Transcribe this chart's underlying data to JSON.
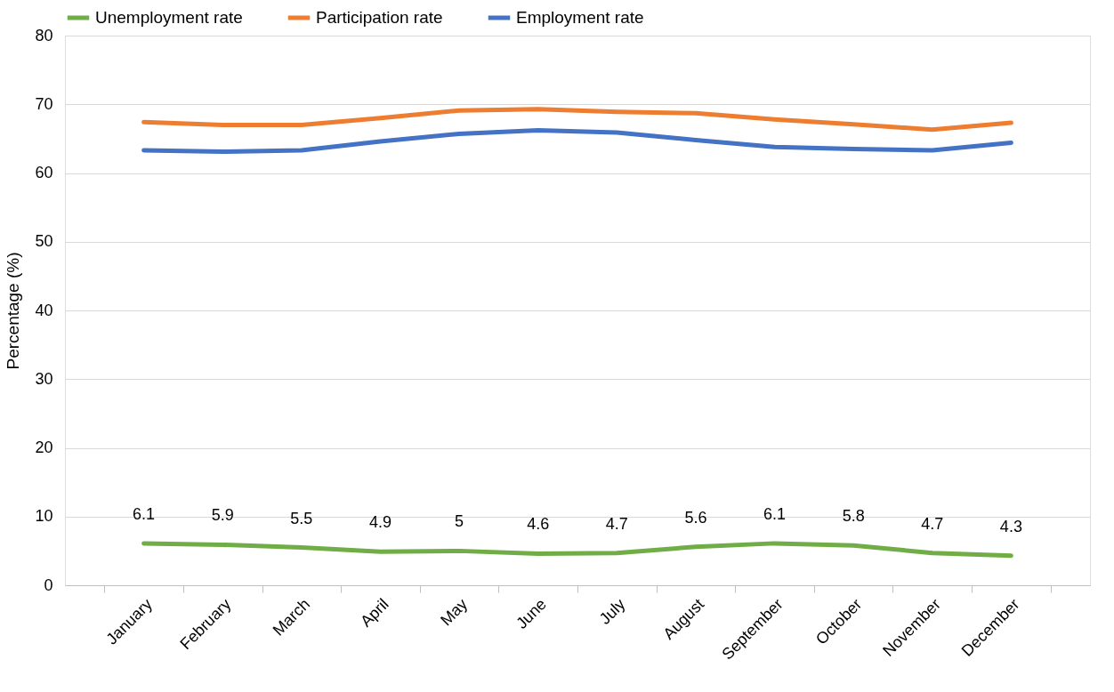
{
  "chart_data": {
    "type": "line",
    "ylabel": "Percentage (%)",
    "categories": [
      "January",
      "February",
      "March",
      "April",
      "May",
      "June",
      "July",
      "August",
      "September",
      "October",
      "November",
      "December"
    ],
    "series": [
      {
        "name": "Unemployment rate",
        "color": "#70ad47",
        "values": [
          6.1,
          5.9,
          5.5,
          4.9,
          5,
          4.6,
          4.7,
          5.6,
          6.1,
          5.8,
          4.7,
          4.3
        ],
        "value_labels": [
          "6.1",
          "5.9",
          "5.5",
          "4.9",
          "5",
          "4.6",
          "4.7",
          "5.6",
          "6.1",
          "5.8",
          "4.7",
          "4.3"
        ]
      },
      {
        "name": "Participation rate",
        "color": "#ed7d31",
        "values": [
          67.4,
          67.0,
          67.0,
          68.0,
          69.1,
          69.3,
          68.9,
          68.7,
          67.8,
          67.1,
          66.3,
          67.3
        ]
      },
      {
        "name": "Employment rate",
        "color": "#4472c4",
        "values": [
          63.3,
          63.1,
          63.3,
          64.6,
          65.7,
          66.2,
          65.9,
          64.8,
          63.8,
          63.5,
          63.3,
          64.4
        ]
      }
    ],
    "ylim": [
      0,
      80
    ],
    "yticks": [
      0,
      10,
      20,
      30,
      40,
      50,
      60,
      70,
      80
    ],
    "grid": "y",
    "legend": "top",
    "marker": "none",
    "line_style": "solid"
  }
}
